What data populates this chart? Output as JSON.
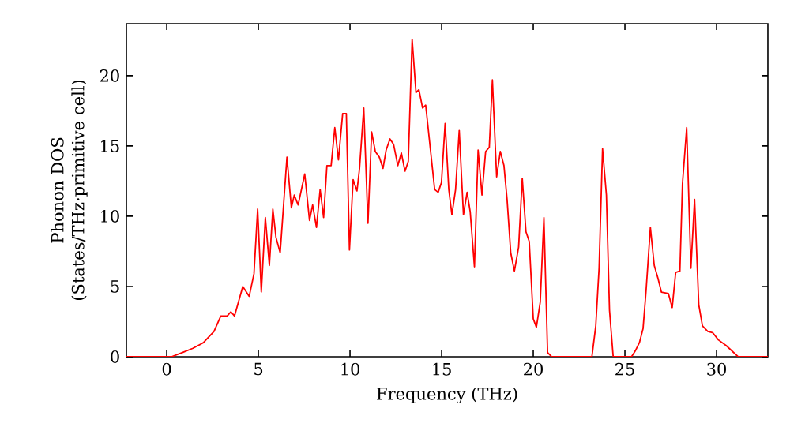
{
  "chart_data": {
    "type": "line",
    "xlabel": "Frequency (THz)",
    "ylabel": "Phonon DOS (States/THz·primitive cell)",
    "x": [
      -2.2,
      0.26,
      0.86,
      1.43,
      2.0,
      2.58,
      2.95,
      3.3,
      3.5,
      3.7,
      4.15,
      4.5,
      4.76,
      4.96,
      5.16,
      5.38,
      5.6,
      5.79,
      5.96,
      6.19,
      6.56,
      6.8,
      6.96,
      7.17,
      7.53,
      7.79,
      7.96,
      8.17,
      8.37,
      8.56,
      8.74,
      8.97,
      9.17,
      9.37,
      9.6,
      9.8,
      9.97,
      10.17,
      10.38,
      10.52,
      10.75,
      10.98,
      11.18,
      11.38,
      11.6,
      11.8,
      11.97,
      12.18,
      12.38,
      12.61,
      12.8,
      13.0,
      13.18,
      13.39,
      13.6,
      13.76,
      13.96,
      14.13,
      14.62,
      14.81,
      14.99,
      15.19,
      15.39,
      15.56,
      15.76,
      15.96,
      16.19,
      16.39,
      16.56,
      16.79,
      16.99,
      17.2,
      17.4,
      17.6,
      17.77,
      18.0,
      18.2,
      18.4,
      18.57,
      18.77,
      18.97,
      19.2,
      19.4,
      19.6,
      19.78,
      20.0,
      20.17,
      20.38,
      20.58,
      20.78,
      21.0,
      23.2,
      23.41,
      23.59,
      23.78,
      23.99,
      24.16,
      24.36,
      25.36,
      25.56,
      25.79,
      25.99,
      26.16,
      26.39,
      26.6,
      26.8,
      26.99,
      27.37,
      27.58,
      27.77,
      28.0,
      28.14,
      28.37,
      28.6,
      28.8,
      29.03,
      29.23,
      29.52,
      29.8,
      30.1,
      30.52,
      31.18,
      32.8
    ],
    "series": [
      {
        "color": "#ff0000",
        "values": [
          0,
          0,
          0.3,
          0.6,
          1.0,
          1.8,
          2.9,
          2.9,
          3.2,
          2.9,
          5.0,
          4.3,
          5.9,
          10.5,
          4.6,
          9.9,
          6.5,
          10.5,
          8.5,
          7.4,
          14.2,
          10.6,
          11.5,
          10.8,
          13.0,
          9.7,
          10.8,
          9.2,
          11.9,
          9.9,
          13.6,
          13.6,
          16.3,
          14.0,
          17.3,
          17.3,
          7.6,
          12.6,
          11.8,
          13.4,
          17.7,
          9.5,
          16.0,
          14.6,
          14.2,
          13.4,
          14.7,
          15.5,
          15.1,
          13.6,
          14.5,
          13.2,
          13.9,
          22.6,
          18.8,
          19.0,
          17.7,
          17.9,
          11.9,
          11.7,
          12.4,
          16.6,
          11.9,
          10.1,
          11.9,
          16.1,
          10.1,
          11.7,
          10.3,
          6.4,
          14.7,
          11.5,
          14.6,
          14.9,
          19.7,
          12.8,
          14.6,
          13.6,
          11.2,
          7.4,
          6.1,
          7.8,
          12.7,
          8.9,
          8.2,
          2.7,
          2.1,
          3.9,
          9.9,
          0.3,
          0,
          0,
          2.2,
          6.3,
          14.8,
          11.5,
          3.3,
          0,
          0,
          0.4,
          1.0,
          2.0,
          4.8,
          9.2,
          6.5,
          5.6,
          4.6,
          4.5,
          3.5,
          6.0,
          6.1,
          12.3,
          16.3,
          6.3,
          11.2,
          3.7,
          2.2,
          1.8,
          1.7,
          1.2,
          0.8,
          0,
          0
        ]
      }
    ],
    "xlim": [
      -2.2,
      32.8
    ],
    "ylim": [
      0,
      23.7
    ],
    "xticks": [
      0,
      5,
      10,
      15,
      20,
      25,
      30
    ],
    "yticks": [
      0,
      5,
      10,
      15,
      20
    ],
    "grid": false,
    "marker": "none",
    "line_style": "solid"
  }
}
